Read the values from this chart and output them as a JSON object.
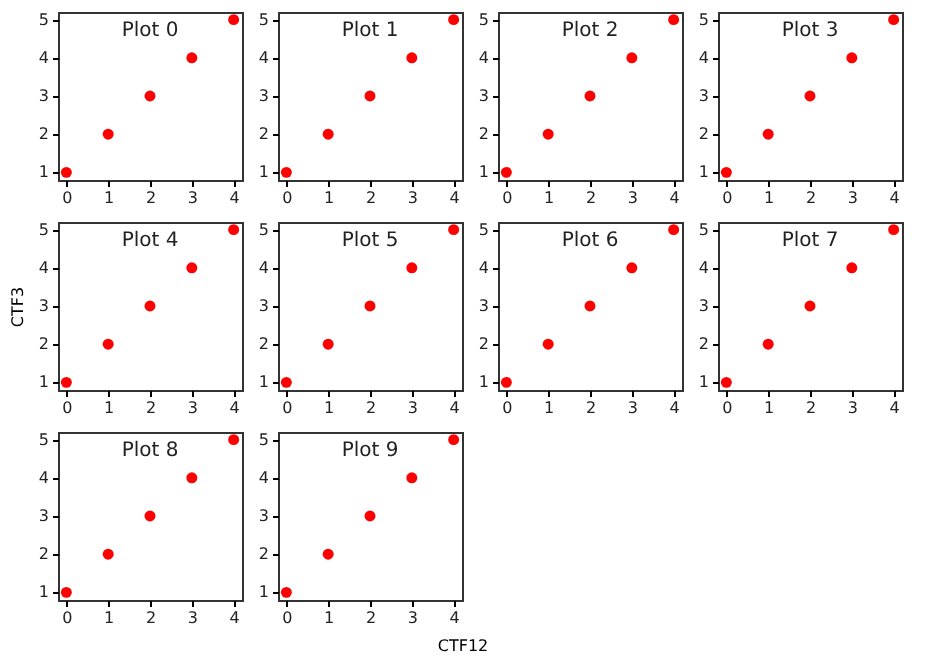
{
  "chart_data": [
    {
      "type": "scatter",
      "title": "Plot 0",
      "x": [
        0,
        1,
        2,
        3,
        4
      ],
      "values": [
        1,
        2,
        3,
        4,
        5
      ],
      "color": "#ff0000",
      "marker": "circle",
      "xlim": [
        -0.2,
        4.2
      ],
      "ylim": [
        0.8,
        5.2
      ],
      "xticks": [
        0,
        1,
        2,
        3,
        4
      ],
      "yticks": [
        1,
        2,
        3,
        4,
        5
      ],
      "grid": false
    },
    {
      "type": "scatter",
      "title": "Plot 1",
      "x": [
        0,
        1,
        2,
        3,
        4
      ],
      "values": [
        1,
        2,
        3,
        4,
        5
      ],
      "color": "#ff0000",
      "marker": "circle",
      "xlim": [
        -0.2,
        4.2
      ],
      "ylim": [
        0.8,
        5.2
      ],
      "xticks": [
        0,
        1,
        2,
        3,
        4
      ],
      "yticks": [
        1,
        2,
        3,
        4,
        5
      ],
      "grid": false
    },
    {
      "type": "scatter",
      "title": "Plot 2",
      "x": [
        0,
        1,
        2,
        3,
        4
      ],
      "values": [
        1,
        2,
        3,
        4,
        5
      ],
      "color": "#ff0000",
      "marker": "circle",
      "xlim": [
        -0.2,
        4.2
      ],
      "ylim": [
        0.8,
        5.2
      ],
      "xticks": [
        0,
        1,
        2,
        3,
        4
      ],
      "yticks": [
        1,
        2,
        3,
        4,
        5
      ],
      "grid": false
    },
    {
      "type": "scatter",
      "title": "Plot 3",
      "x": [
        0,
        1,
        2,
        3,
        4
      ],
      "values": [
        1,
        2,
        3,
        4,
        5
      ],
      "color": "#ff0000",
      "marker": "circle",
      "xlim": [
        -0.2,
        4.2
      ],
      "ylim": [
        0.8,
        5.2
      ],
      "xticks": [
        0,
        1,
        2,
        3,
        4
      ],
      "yticks": [
        1,
        2,
        3,
        4,
        5
      ],
      "grid": false
    },
    {
      "type": "scatter",
      "title": "Plot 4",
      "ylabel": "CTF3",
      "x": [
        0,
        1,
        2,
        3,
        4
      ],
      "values": [
        1,
        2,
        3,
        4,
        5
      ],
      "color": "#ff0000",
      "marker": "circle",
      "xlim": [
        -0.2,
        4.2
      ],
      "ylim": [
        0.8,
        5.2
      ],
      "xticks": [
        0,
        1,
        2,
        3,
        4
      ],
      "yticks": [
        1,
        2,
        3,
        4,
        5
      ],
      "grid": false
    },
    {
      "type": "scatter",
      "title": "Plot 5",
      "x": [
        0,
        1,
        2,
        3,
        4
      ],
      "values": [
        1,
        2,
        3,
        4,
        5
      ],
      "color": "#ff0000",
      "marker": "circle",
      "xlim": [
        -0.2,
        4.2
      ],
      "ylim": [
        0.8,
        5.2
      ],
      "xticks": [
        0,
        1,
        2,
        3,
        4
      ],
      "yticks": [
        1,
        2,
        3,
        4,
        5
      ],
      "grid": false
    },
    {
      "type": "scatter",
      "title": "Plot 6",
      "x": [
        0,
        1,
        2,
        3,
        4
      ],
      "values": [
        1,
        2,
        3,
        4,
        5
      ],
      "color": "#ff0000",
      "marker": "circle",
      "xlim": [
        -0.2,
        4.2
      ],
      "ylim": [
        0.8,
        5.2
      ],
      "xticks": [
        0,
        1,
        2,
        3,
        4
      ],
      "yticks": [
        1,
        2,
        3,
        4,
        5
      ],
      "grid": false
    },
    {
      "type": "scatter",
      "title": "Plot 7",
      "x": [
        0,
        1,
        2,
        3,
        4
      ],
      "values": [
        1,
        2,
        3,
        4,
        5
      ],
      "color": "#ff0000",
      "marker": "circle",
      "xlim": [
        -0.2,
        4.2
      ],
      "ylim": [
        0.8,
        5.2
      ],
      "xticks": [
        0,
        1,
        2,
        3,
        4
      ],
      "yticks": [
        1,
        2,
        3,
        4,
        5
      ],
      "grid": false
    },
    {
      "type": "scatter",
      "title": "Plot 8",
      "x": [
        0,
        1,
        2,
        3,
        4
      ],
      "values": [
        1,
        2,
        3,
        4,
        5
      ],
      "color": "#ff0000",
      "marker": "circle",
      "xlim": [
        -0.2,
        4.2
      ],
      "ylim": [
        0.8,
        5.2
      ],
      "xticks": [
        0,
        1,
        2,
        3,
        4
      ],
      "yticks": [
        1,
        2,
        3,
        4,
        5
      ],
      "grid": false
    },
    {
      "type": "scatter",
      "title": "Plot 9",
      "xlabel": "CTF12",
      "x": [
        0,
        1,
        2,
        3,
        4
      ],
      "values": [
        1,
        2,
        3,
        4,
        5
      ],
      "color": "#ff0000",
      "marker": "circle",
      "xlim": [
        -0.2,
        4.2
      ],
      "ylim": [
        0.8,
        5.2
      ],
      "xticks": [
        0,
        1,
        2,
        3,
        4
      ],
      "yticks": [
        1,
        2,
        3,
        4,
        5
      ],
      "grid": false
    }
  ]
}
